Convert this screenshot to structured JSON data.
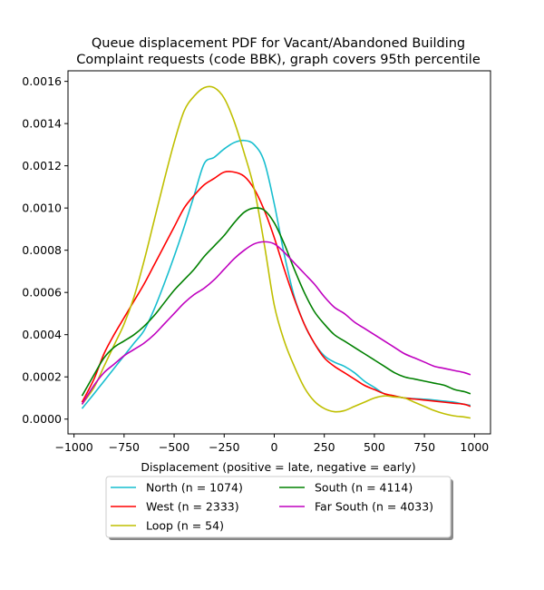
{
  "chart_data": {
    "type": "line",
    "title": [
      "Queue displacement PDF for Vacant/Abandoned Building",
      "Complaint  requests (code BBK), graph covers 95th percentile"
    ],
    "xlabel": "Displacement (positive = late, negative = early)",
    "ylabel": "",
    "xlim": [
      -1030,
      1080
    ],
    "ylim": [
      -7e-05,
      0.00165
    ],
    "xticks": [
      -1000,
      -750,
      -500,
      -250,
      0,
      250,
      500,
      750,
      1000
    ],
    "xtick_labels": [
      "−1000",
      "−750",
      "−500",
      "−250",
      "0",
      "250",
      "500",
      "750",
      "1000"
    ],
    "yticks": [
      0.0,
      0.0002,
      0.0004,
      0.0006,
      0.0008,
      0.001,
      0.0012,
      0.0014,
      0.0016
    ],
    "ytick_labels": [
      "0.0000",
      "0.0002",
      "0.0004",
      "0.0006",
      "0.0008",
      "0.0010",
      "0.0012",
      "0.0014",
      "0.0016"
    ],
    "grid": false,
    "legend_position": "below",
    "x": [
      -960,
      -900,
      -850,
      -800,
      -750,
      -700,
      -650,
      -600,
      -550,
      -500,
      -450,
      -400,
      -350,
      -300,
      -250,
      -200,
      -150,
      -100,
      -50,
      0,
      50,
      100,
      150,
      200,
      250,
      300,
      350,
      400,
      450,
      500,
      550,
      600,
      650,
      700,
      750,
      800,
      850,
      900,
      950,
      980
    ],
    "series": [
      {
        "name": "North (n = 1074)",
        "color": "#17becf",
        "values": [
          5e-05,
          0.00012,
          0.00018,
          0.00024,
          0.0003,
          0.00036,
          0.00042,
          0.00052,
          0.00064,
          0.00077,
          0.00091,
          0.00106,
          0.00121,
          0.00124,
          0.00128,
          0.00131,
          0.00132,
          0.0013,
          0.00122,
          0.00102,
          0.00078,
          0.00058,
          0.00045,
          0.00036,
          0.0003,
          0.00027,
          0.00025,
          0.00022,
          0.00018,
          0.00015,
          0.00012,
          0.00011,
          0.0001,
          9.7e-05,
          9.4e-05,
          9e-05,
          8.5e-05,
          8e-05,
          7e-05,
          6.5e-05
        ]
      },
      {
        "name": "West (n = 2333)",
        "color": "#ff0000",
        "values": [
          8e-05,
          0.00019,
          0.00031,
          0.0004,
          0.00048,
          0.00056,
          0.00064,
          0.00073,
          0.00082,
          0.00091,
          0.001,
          0.00106,
          0.00111,
          0.00114,
          0.00117,
          0.00117,
          0.00115,
          0.00109,
          0.00099,
          0.00086,
          0.00071,
          0.00057,
          0.00045,
          0.00036,
          0.00029,
          0.00025,
          0.00022,
          0.00019,
          0.00016,
          0.00014,
          0.00012,
          0.00011,
          0.0001,
          9.5e-05,
          9e-05,
          8.5e-05,
          8e-05,
          7.5e-05,
          7e-05,
          6e-05
        ]
      },
      {
        "name": "Loop (n = 54)",
        "color": "#bfbf00",
        "values": [
          7e-05,
          0.00015,
          0.00025,
          0.00035,
          0.00045,
          0.00058,
          0.00075,
          0.00094,
          0.00113,
          0.00131,
          0.00146,
          0.00153,
          0.00157,
          0.00157,
          0.00152,
          0.00141,
          0.00126,
          0.00109,
          0.00083,
          0.00054,
          0.00037,
          0.00025,
          0.00015,
          8.5e-05,
          5e-05,
          3.5e-05,
          4e-05,
          6e-05,
          8e-05,
          0.0001,
          0.00011,
          0.000105,
          0.0001,
          8e-05,
          6e-05,
          4e-05,
          2.5e-05,
          1.5e-05,
          1e-05,
          5e-06
        ]
      },
      {
        "name": "South (n = 4114)",
        "color": "#008000",
        "values": [
          0.00011,
          0.00021,
          0.00029,
          0.00034,
          0.00037,
          0.0004,
          0.00044,
          0.00049,
          0.00055,
          0.00061,
          0.00066,
          0.00071,
          0.00077,
          0.00082,
          0.00087,
          0.00093,
          0.00098,
          0.001,
          0.00099,
          0.00093,
          0.00083,
          0.00071,
          0.0006,
          0.00051,
          0.00045,
          0.0004,
          0.00037,
          0.00034,
          0.00031,
          0.00028,
          0.00025,
          0.00022,
          0.0002,
          0.00019,
          0.00018,
          0.00017,
          0.00016,
          0.00014,
          0.00013,
          0.00012
        ]
      },
      {
        "name": "Far South (n = 4033)",
        "color": "#bf00bf",
        "values": [
          7e-05,
          0.00016,
          0.00022,
          0.00026,
          0.0003,
          0.00033,
          0.00036,
          0.0004,
          0.00045,
          0.0005,
          0.00055,
          0.00059,
          0.00062,
          0.00066,
          0.00071,
          0.00076,
          0.0008,
          0.00083,
          0.00084,
          0.00083,
          0.00079,
          0.00074,
          0.00069,
          0.00064,
          0.00058,
          0.00053,
          0.0005,
          0.00046,
          0.00043,
          0.0004,
          0.00037,
          0.00034,
          0.00031,
          0.00029,
          0.00027,
          0.00025,
          0.00024,
          0.00023,
          0.00022,
          0.00021
        ]
      }
    ]
  }
}
